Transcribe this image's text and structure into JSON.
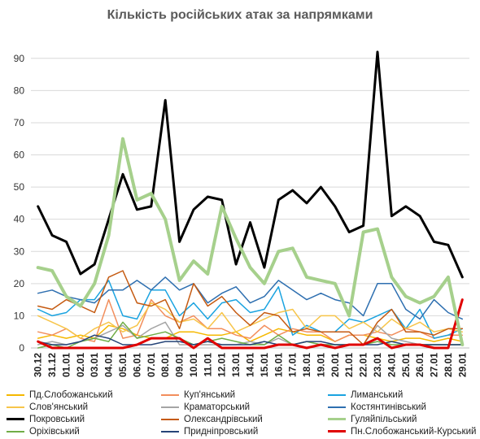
{
  "chart_data": {
    "type": "line",
    "title": "Кількість російських атак за напрямками",
    "xlabel": "",
    "ylabel": "",
    "ylim": [
      0,
      95
    ],
    "yticks": [
      0,
      10,
      20,
      30,
      40,
      50,
      60,
      70,
      80,
      90
    ],
    "grid": "horizontal",
    "legend_position": "bottom",
    "categories": [
      "30.12",
      "31.12",
      "01.01",
      "02.01",
      "03.01",
      "04.01",
      "05.01",
      "06.01",
      "07.01",
      "08.01",
      "09.01",
      "10.01",
      "11.01",
      "12.01",
      "13.01",
      "14.01",
      "15.01",
      "16.01",
      "17.01",
      "18.01",
      "19.01",
      "20.01",
      "21.01",
      "22.01",
      "23.01",
      "24.01",
      "25.01",
      "26.01",
      "27.01",
      "28.01",
      "29.01"
    ],
    "series": [
      {
        "name": "Пд.Слобожанський",
        "color": "#f5b800",
        "width": 1.5,
        "values": [
          3,
          4,
          3,
          4,
          3,
          7,
          6,
          4,
          3,
          3,
          5,
          5,
          4,
          4,
          5,
          2,
          4,
          6,
          5,
          4,
          4,
          2,
          4,
          4,
          3,
          2,
          3,
          3,
          2,
          3,
          2
        ]
      },
      {
        "name": "Куп'янський",
        "color": "#f28e5c",
        "width": 1.5,
        "values": [
          5,
          4,
          6,
          3,
          2,
          15,
          3,
          4,
          15,
          10,
          8,
          10,
          6,
          6,
          4,
          3,
          7,
          4,
          6,
          5,
          5,
          2,
          4,
          4,
          5,
          4,
          6,
          5,
          3,
          4,
          4
        ]
      },
      {
        "name": "Лиманський",
        "color": "#1aa3e0",
        "width": 1.5,
        "values": [
          12,
          10,
          11,
          15,
          15,
          21,
          10,
          9,
          18,
          18,
          10,
          14,
          9,
          14,
          15,
          11,
          12,
          19,
          4,
          7,
          5,
          5,
          9,
          8,
          10,
          12,
          6,
          12,
          3,
          4,
          6
        ]
      },
      {
        "name": "Слов'янський",
        "color": "#f7c54a",
        "width": 1.5,
        "values": [
          10,
          8,
          6,
          3,
          6,
          8,
          5,
          7,
          14,
          12,
          8,
          9,
          6,
          11,
          5,
          7,
          9,
          11,
          12,
          6,
          10,
          10,
          6,
          8,
          5,
          9,
          6,
          8,
          5,
          6,
          5
        ]
      },
      {
        "name": "Краматорський",
        "color": "#a5a5a5",
        "width": 1.5,
        "values": [
          1,
          2,
          1,
          2,
          3,
          5,
          7,
          3,
          6,
          8,
          1,
          1,
          1,
          1,
          1,
          2,
          1,
          3,
          1,
          2,
          1,
          1,
          1,
          1,
          7,
          3,
          2,
          1,
          1,
          1,
          1
        ]
      },
      {
        "name": "Костянтинівський",
        "color": "#2e6fb0",
        "width": 1.5,
        "values": [
          17,
          18,
          16,
          15,
          14,
          18,
          18,
          21,
          18,
          22,
          18,
          20,
          14,
          17,
          19,
          14,
          16,
          21,
          18,
          15,
          17,
          15,
          14,
          10,
          20,
          20,
          12,
          9,
          15,
          11,
          9
        ]
      },
      {
        "name": "Покровський",
        "color": "#000000",
        "width": 3,
        "values": [
          44,
          35,
          33,
          23,
          26,
          40,
          54,
          43,
          44,
          77,
          33,
          43,
          47,
          46,
          26,
          39,
          25,
          46,
          49,
          45,
          50,
          44,
          36,
          38,
          92,
          41,
          44,
          41,
          33,
          32,
          22
        ]
      },
      {
        "name": "Олександрівський",
        "color": "#c55a11",
        "width": 1.5,
        "values": [
          13,
          12,
          15,
          13,
          11,
          22,
          24,
          14,
          13,
          15,
          6,
          20,
          13,
          16,
          11,
          7,
          11,
          10,
          5,
          6,
          5,
          5,
          5,
          1,
          8,
          12,
          5,
          5,
          4,
          6,
          6
        ]
      },
      {
        "name": "Гуляйпільський",
        "color": "#a6d08c",
        "width": 4,
        "values": [
          25,
          24,
          16,
          13,
          20,
          35,
          65,
          46,
          48,
          40,
          21,
          27,
          23,
          44,
          34,
          25,
          20,
          30,
          31,
          22,
          21,
          20,
          10,
          36,
          37,
          22,
          16,
          14,
          16,
          22,
          1
        ]
      },
      {
        "name": "Оріхівський",
        "color": "#70ad47",
        "width": 1.5,
        "values": [
          0,
          1,
          0,
          2,
          3,
          2,
          8,
          3,
          4,
          5,
          3,
          1,
          2,
          3,
          2,
          1,
          1,
          4,
          1,
          2,
          1,
          1,
          1,
          1,
          2,
          1,
          1,
          1,
          1,
          1,
          1
        ]
      },
      {
        "name": "Придніпровський",
        "color": "#264478",
        "width": 1.5,
        "values": [
          2,
          1,
          1,
          2,
          4,
          3,
          1,
          1,
          1,
          2,
          2,
          1,
          2,
          1,
          1,
          1,
          2,
          1,
          1,
          2,
          2,
          1,
          1,
          1,
          1,
          2,
          1,
          1,
          1,
          1,
          1
        ]
      },
      {
        "name": "Пн.Слобожанський-Курський",
        "color": "#e00000",
        "width": 3,
        "values": [
          2,
          0,
          0,
          0,
          0,
          0,
          0,
          1,
          3,
          3,
          3,
          0,
          3,
          0,
          0,
          0,
          0,
          1,
          1,
          0,
          1,
          0,
          1,
          1,
          3,
          0,
          1,
          1,
          0,
          0,
          15
        ]
      }
    ]
  }
}
